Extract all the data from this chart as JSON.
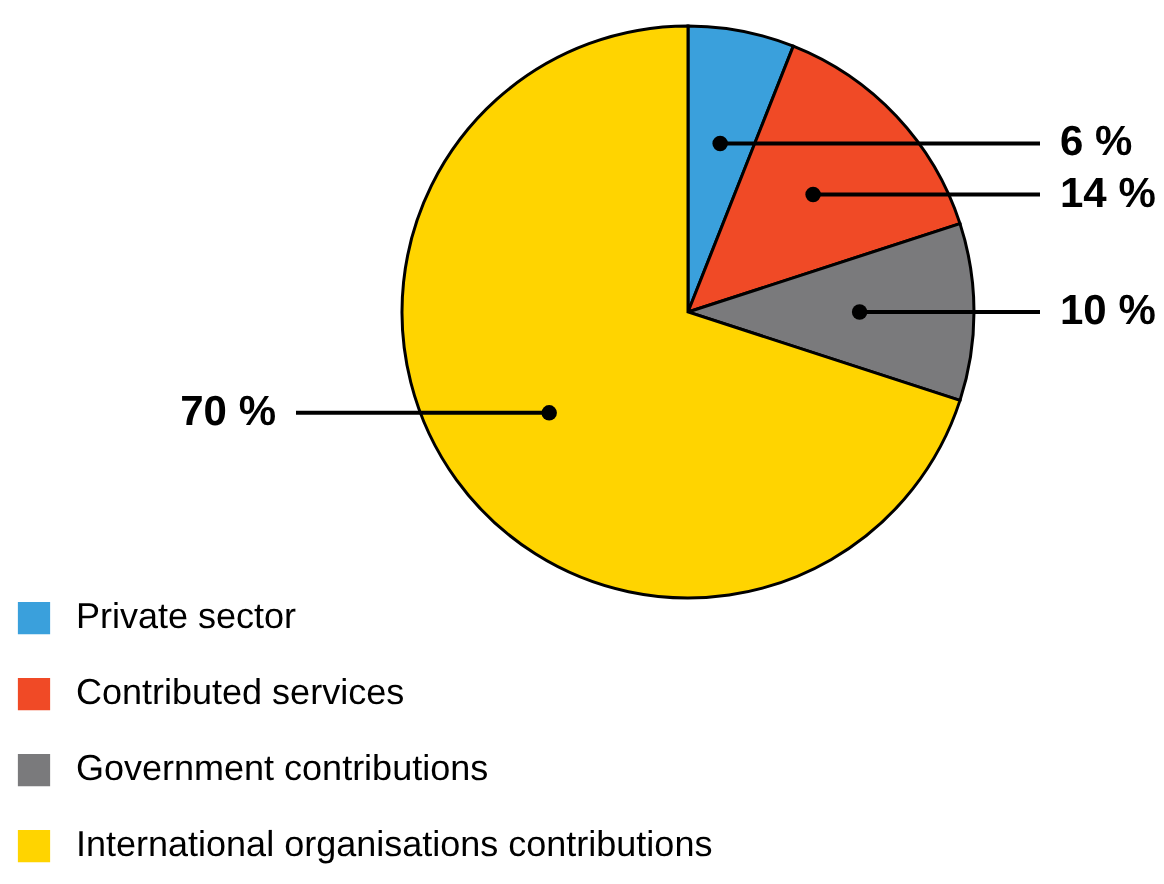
{
  "chart_data": {
    "type": "pie",
    "categories": [
      "Private sector",
      "Contributed services",
      "Government contributions",
      "International organisations contributions"
    ],
    "values": [
      6,
      14,
      10,
      70
    ],
    "colors": [
      "#3aa0dc",
      "#f04a26",
      "#7a7a7c",
      "#ffd400"
    ],
    "value_labels": [
      "6 %",
      "14 %",
      "10 %",
      "70 %"
    ],
    "legend": "bottom left"
  }
}
